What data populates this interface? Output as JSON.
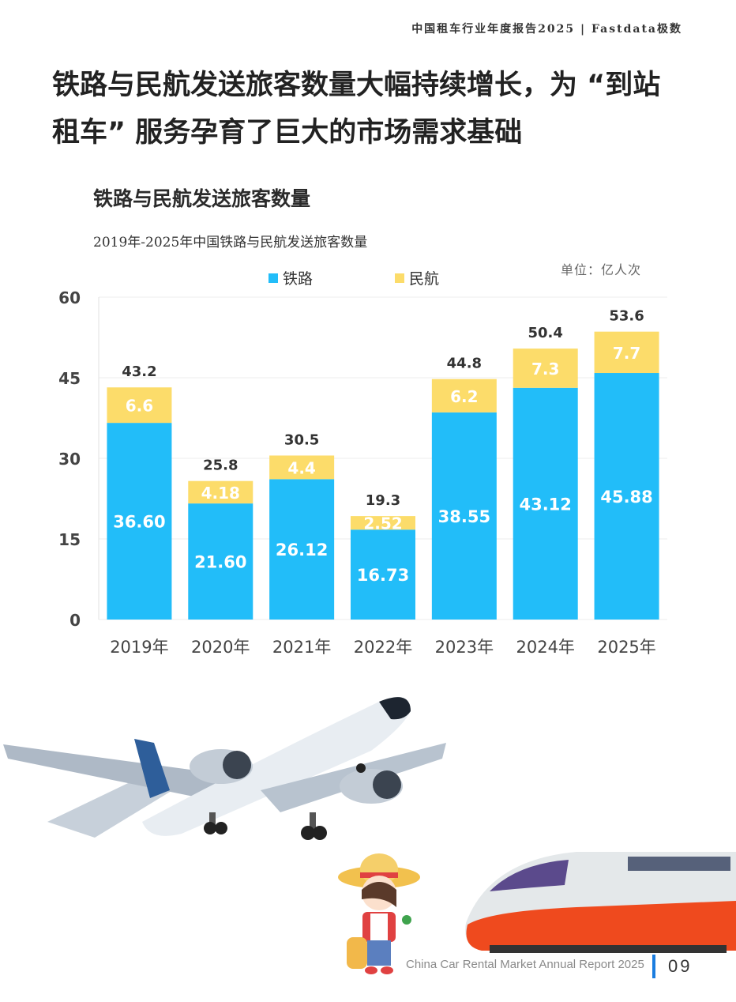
{
  "header": {
    "note": "中国租车行业年度报告2025 | Fastdata极数"
  },
  "headline": "铁路与民航发送旅客数量大幅持续增长，为 “到站租车” 服务孕育了巨大的市场需求基础",
  "chart_data": {
    "type": "bar",
    "stacked": true,
    "title": "铁路与民航发送旅客数量",
    "subtitle": "2019年-2025年中国铁路与民航发送旅客数量",
    "unit": "单位：亿人次",
    "categories": [
      "2019年",
      "2020年",
      "2021年",
      "2022年",
      "2023年",
      "2024年",
      "2025年"
    ],
    "series": [
      {
        "name": "铁路",
        "color": "#22bdf9",
        "values": [
          36.6,
          21.6,
          26.12,
          16.73,
          38.55,
          43.12,
          45.88
        ],
        "labels": [
          "36.60",
          "21.60",
          "26.12",
          "16.73",
          "38.55",
          "43.12",
          "45.88"
        ]
      },
      {
        "name": "民航",
        "color": "#fcdc6a",
        "values": [
          6.6,
          4.18,
          4.4,
          2.52,
          6.2,
          7.3,
          7.7
        ],
        "labels": [
          "6.6",
          "4.18",
          "4.4",
          "2.52",
          "6.2",
          "7.3",
          "7.7"
        ]
      }
    ],
    "totals": [
      "43.2",
      "25.8",
      "30.5",
      "19.3",
      "44.8",
      "50.4",
      "53.6"
    ],
    "ylim": [
      0,
      60
    ],
    "yticks": [
      "0",
      "15",
      "30",
      "45",
      "60"
    ],
    "grid": true,
    "legend_position": "top-center"
  },
  "illustrations": [
    "airplane",
    "high-speed-train",
    "traveler-girl"
  ],
  "footer": {
    "text": "China Car Rental Market Annual Report 2025",
    "page": "09"
  }
}
